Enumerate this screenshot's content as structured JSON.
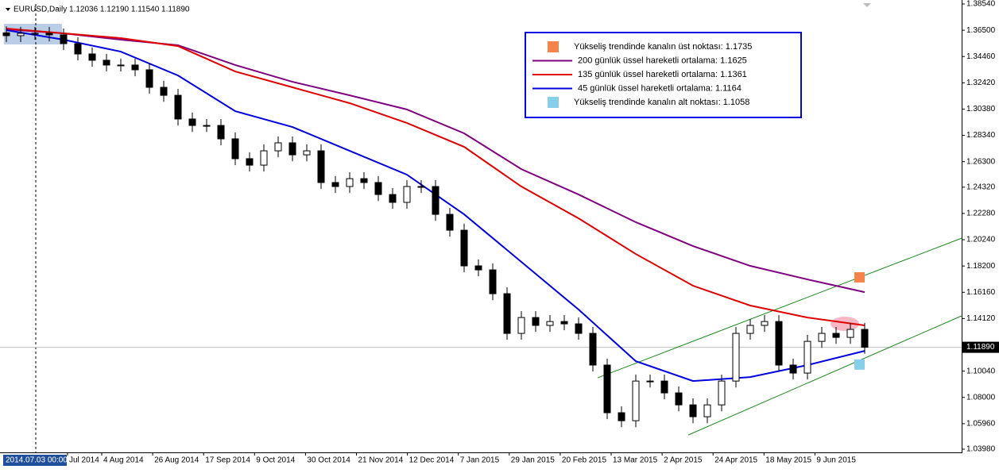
{
  "chart_data": {
    "type": "candlestick",
    "title": "EURUSD,Daily  1.12036 1.12190 1.11540 1.11890",
    "cursor_label": "2014.07.03 00:00",
    "categories": [
      "Jul 2014",
      "4 Aug 2014",
      "26 Aug 2014",
      "17 Sep 2014",
      "9 Oct 2014",
      "30 Oct 2014",
      "21 Nov 2014",
      "12 Dec 2014",
      "7 Jan 2015",
      "29 Jan 2015",
      "20 Feb 2015",
      "13 Mar 2015",
      "2 Apr 2015",
      "24 Apr 2015",
      "18 May 2015",
      "9 Jun 2015"
    ],
    "ylim": [
      1.0398,
      1.3854
    ],
    "yticks": [
      {
        "value": 1.3854,
        "label": "1.38540"
      },
      {
        "value": 1.365,
        "label": "1.36500"
      },
      {
        "value": 1.3446,
        "label": "1.34460"
      },
      {
        "value": 1.3242,
        "label": "1.32420"
      },
      {
        "value": 1.3038,
        "label": "1.30380"
      },
      {
        "value": 1.2834,
        "label": "1.28340"
      },
      {
        "value": 1.263,
        "label": "1.26300"
      },
      {
        "value": 1.2432,
        "label": "1.24320"
      },
      {
        "value": 1.2228,
        "label": "1.22280"
      },
      {
        "value": 1.2024,
        "label": "1.20240"
      },
      {
        "value": 1.182,
        "label": "1.18200"
      },
      {
        "value": 1.1616,
        "label": "1.16160"
      },
      {
        "value": 1.1412,
        "label": "1.14120"
      },
      {
        "value": 1.1004,
        "label": "1.10040"
      },
      {
        "value": 1.08,
        "label": "1.08000"
      },
      {
        "value": 1.0596,
        "label": "1.05960"
      },
      {
        "value": 1.0398,
        "label": "1.03980"
      }
    ],
    "current_price": {
      "value": 1.1189,
      "label": "1.11890"
    },
    "candles": {
      "open": [
        1.363,
        1.3608,
        1.3626,
        1.3626,
        1.3614,
        1.3546,
        1.3466,
        1.3417,
        1.338,
        1.338,
        1.3343,
        1.3207,
        1.3145,
        1.2961,
        1.2911,
        1.2911,
        1.2807,
        1.2653,
        1.2603,
        1.2714,
        1.2776,
        1.2683,
        1.2714,
        1.2468,
        1.2437,
        1.2498,
        1.2468,
        1.2375,
        1.2314,
        1.2437,
        1.2437,
        1.2221,
        1.2098,
        1.1821,
        1.179,
        1.1605,
        1.1297,
        1.142,
        1.1359,
        1.1389,
        1.1371,
        1.1297,
        1.1051,
        1.0681,
        1.0619,
        1.0927,
        1.0927,
        1.0835,
        1.0742,
        1.065,
        1.0742,
        1.0927,
        1.1297,
        1.1359,
        1.1389,
        1.1051,
        1.0989,
        1.1235,
        1.1297,
        1.1266,
        1.1328
      ],
      "high": [
        1.368,
        1.3676,
        1.3676,
        1.3676,
        1.3664,
        1.3596,
        1.3516,
        1.3467,
        1.343,
        1.343,
        1.3393,
        1.3257,
        1.3195,
        1.3011,
        1.2961,
        1.2961,
        1.2857,
        1.2703,
        1.2764,
        1.2826,
        1.2826,
        1.2764,
        1.2764,
        1.2518,
        1.2548,
        1.2548,
        1.2518,
        1.2425,
        1.2487,
        1.2487,
        1.2487,
        1.2271,
        1.2148,
        1.1871,
        1.184,
        1.1655,
        1.147,
        1.147,
        1.1439,
        1.1439,
        1.1421,
        1.1347,
        1.1101,
        1.0731,
        1.0977,
        1.0977,
        1.0977,
        1.0885,
        1.0792,
        1.0792,
        1.0977,
        1.1347,
        1.1409,
        1.1439,
        1.1439,
        1.1101,
        1.1285,
        1.1347,
        1.1347,
        1.1378,
        1.1378
      ],
      "low": [
        1.3558,
        1.3558,
        1.3576,
        1.3564,
        1.3496,
        1.3416,
        1.3367,
        1.333,
        1.333,
        1.3293,
        1.3157,
        1.3095,
        1.2911,
        1.2861,
        1.2861,
        1.2757,
        1.2603,
        1.2553,
        1.2553,
        1.2664,
        1.2633,
        1.2633,
        1.2418,
        1.2387,
        1.2387,
        1.2418,
        1.2325,
        1.2264,
        1.2264,
        1.2387,
        1.2171,
        1.2048,
        1.1771,
        1.174,
        1.1555,
        1.1247,
        1.1247,
        1.1309,
        1.1309,
        1.1321,
        1.1247,
        1.1001,
        1.0631,
        1.0569,
        1.0569,
        1.0877,
        1.0785,
        1.0692,
        1.06,
        1.06,
        1.0692,
        1.0877,
        1.1247,
        1.1309,
        1.1001,
        1.0939,
        1.0939,
        1.1185,
        1.1216,
        1.1216,
        1.1139
      ],
      "close": [
        1.3608,
        1.3626,
        1.3626,
        1.3614,
        1.3546,
        1.3466,
        1.3417,
        1.338,
        1.338,
        1.3343,
        1.3207,
        1.3145,
        1.2961,
        1.2911,
        1.2911,
        1.2807,
        1.2653,
        1.2603,
        1.2714,
        1.2776,
        1.2683,
        1.2714,
        1.2468,
        1.2437,
        1.2498,
        1.2468,
        1.2375,
        1.2314,
        1.2437,
        1.2437,
        1.2221,
        1.2098,
        1.1821,
        1.179,
        1.1605,
        1.1297,
        1.142,
        1.1359,
        1.1389,
        1.1371,
        1.1297,
        1.1051,
        1.0681,
        1.0619,
        1.0927,
        1.0927,
        1.0835,
        1.0742,
        1.065,
        1.0742,
        1.0927,
        1.1297,
        1.1359,
        1.1389,
        1.1051,
        1.0989,
        1.1235,
        1.1297,
        1.1266,
        1.1328,
        1.1189
      ]
    },
    "series": [
      {
        "name": "200 günlük üssel hareketli ortalama: 1.1625",
        "color": "#800080",
        "x": [
          0,
          4,
          8,
          12,
          16,
          20,
          24,
          28,
          32,
          36,
          40,
          44,
          48,
          52,
          56,
          60
        ],
        "values": [
          1.3657,
          1.3626,
          1.3577,
          1.3534,
          1.338,
          1.325,
          1.3145,
          1.3035,
          1.285,
          1.2572,
          1.2375,
          1.216,
          1.1975,
          1.1821,
          1.1716,
          1.1617
        ]
      },
      {
        "name": "135 günlük üssel hareketli ortalama: 1.1361",
        "color": "#e00000",
        "x": [
          0,
          4,
          8,
          12,
          16,
          20,
          24,
          28,
          32,
          36,
          40,
          44,
          48,
          52,
          56,
          60
        ],
        "values": [
          1.3663,
          1.3626,
          1.3589,
          1.3527,
          1.333,
          1.3207,
          1.3084,
          1.293,
          1.2745,
          1.2437,
          1.219,
          1.1913,
          1.1667,
          1.1513,
          1.142,
          1.1359
        ]
      },
      {
        "name": "45 günlük üssel hareketli ortalama:   1.1164",
        "color": "#0000e0",
        "x": [
          0,
          4,
          8,
          12,
          16,
          20,
          24,
          28,
          32,
          36,
          40,
          44,
          48,
          52,
          56,
          60
        ],
        "values": [
          1.3651,
          1.3577,
          1.3484,
          1.3299,
          1.3022,
          1.2899,
          1.2714,
          1.2529,
          1.2221,
          1.1852,
          1.1482,
          1.1081,
          1.0927,
          1.0958,
          1.1051,
          1.1161
        ]
      }
    ],
    "markers": [
      {
        "name": "Yükseliş trendinde kanalın üst noktası: 1.1735",
        "color": "#f4844c",
        "value": 1.1735
      },
      {
        "name": "Yükseliş trendinde kanalın alt noktası: 1.1058",
        "color": "#87ceeb",
        "value": 1.1058
      }
    ],
    "channels": [
      {
        "start": 1.0952,
        "end": 1.2036,
        "color": "#1a8c1a"
      },
      {
        "start": 1.0508,
        "end": 1.1433,
        "color": "#1a8c1a"
      }
    ]
  }
}
